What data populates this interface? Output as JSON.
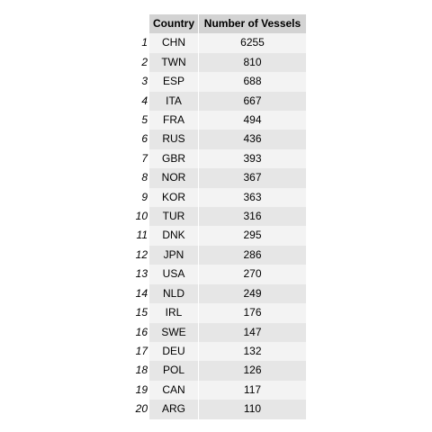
{
  "chart_data": {
    "type": "table",
    "columns": [
      "",
      "Country",
      "Number of Vessels"
    ],
    "rows": [
      {
        "index": "1",
        "country": "CHN",
        "vessels": 6255
      },
      {
        "index": "2",
        "country": "TWN",
        "vessels": 810
      },
      {
        "index": "3",
        "country": "ESP",
        "vessels": 688
      },
      {
        "index": "4",
        "country": "ITA",
        "vessels": 667
      },
      {
        "index": "5",
        "country": "FRA",
        "vessels": 494
      },
      {
        "index": "6",
        "country": "RUS",
        "vessels": 436
      },
      {
        "index": "7",
        "country": "GBR",
        "vessels": 393
      },
      {
        "index": "8",
        "country": "NOR",
        "vessels": 367
      },
      {
        "index": "9",
        "country": "KOR",
        "vessels": 363
      },
      {
        "index": "10",
        "country": "TUR",
        "vessels": 316
      },
      {
        "index": "11",
        "country": "DNK",
        "vessels": 295
      },
      {
        "index": "12",
        "country": "JPN",
        "vessels": 286
      },
      {
        "index": "13",
        "country": "USA",
        "vessels": 270
      },
      {
        "index": "14",
        "country": "NLD",
        "vessels": 249
      },
      {
        "index": "15",
        "country": "IRL",
        "vessels": 176
      },
      {
        "index": "16",
        "country": "SWE",
        "vessels": 147
      },
      {
        "index": "17",
        "country": "DEU",
        "vessels": 132
      },
      {
        "index": "18",
        "country": "POL",
        "vessels": 126
      },
      {
        "index": "19",
        "country": "CAN",
        "vessels": 117
      },
      {
        "index": "20",
        "country": "ARG",
        "vessels": 110
      }
    ],
    "header_background": "#d3d3d3",
    "row_background_odd": "#f3f3f3",
    "row_background_even": "#e6e6e6"
  }
}
